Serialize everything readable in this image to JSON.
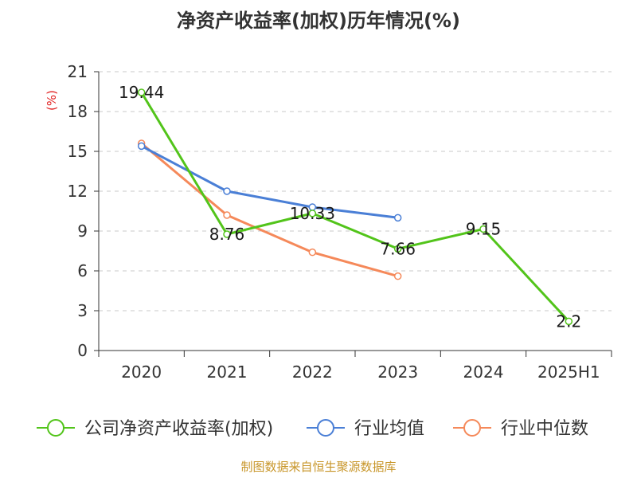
{
  "chart_data": {
    "type": "line",
    "title": "净资产收益率(加权)历年情况(%)",
    "ylabel": "(%)",
    "xlabel": "",
    "categories": [
      "2020",
      "2021",
      "2022",
      "2023",
      "2024",
      "2025H1"
    ],
    "ylim": [
      0,
      21
    ],
    "yticks": [
      0,
      3,
      6,
      9,
      12,
      15,
      18,
      21
    ],
    "grid": true,
    "legend_position": "bottom",
    "series": [
      {
        "name": "公司净资产收益率(加权)",
        "color": "#52c41a",
        "values": [
          19.44,
          8.76,
          10.33,
          7.66,
          9.15,
          2.2
        ],
        "labels": [
          "19.44",
          "8.76",
          "10.33",
          "7.66",
          "9.15",
          "2.2"
        ],
        "show_labels": true
      },
      {
        "name": "行业均值",
        "color": "#4a7fd6",
        "values": [
          15.4,
          12.0,
          10.8,
          10.0,
          null,
          null
        ],
        "show_labels": false
      },
      {
        "name": "行业中位数",
        "color": "#f5895a",
        "values": [
          15.6,
          10.2,
          7.4,
          5.6,
          null,
          null
        ],
        "show_labels": false
      }
    ],
    "source": "制图数据来自恒生聚源数据库"
  }
}
